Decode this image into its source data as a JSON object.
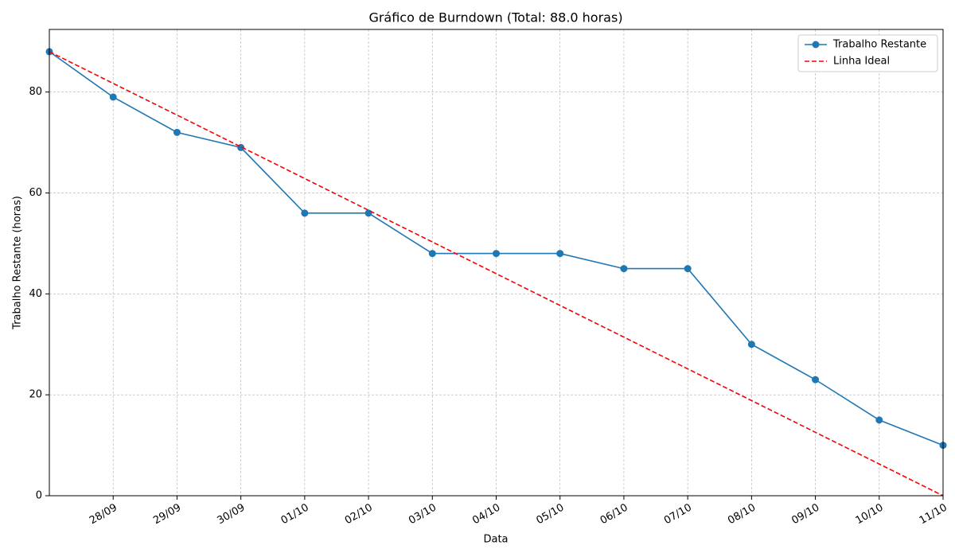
{
  "chart_data": {
    "type": "line",
    "title": "Gráfico de Burndown (Total: 88.0 horas)",
    "x_label": "Data",
    "y_label": "Trabalho Restante (horas)",
    "categories": [
      null,
      "28/09",
      "29/09",
      "30/09",
      "01/10",
      "02/10",
      "03/10",
      "04/10",
      "05/10",
      "06/10",
      "07/10",
      "08/10",
      "09/10",
      "10/10",
      "11/10"
    ],
    "series": [
      {
        "name": "Trabalho Restante",
        "color": "#1f77b4",
        "style": "solid",
        "markers": true,
        "values": [
          88,
          79,
          72,
          69,
          56,
          56,
          48,
          48,
          48,
          45,
          45,
          30,
          23,
          15,
          10
        ]
      },
      {
        "name": "Linha Ideal",
        "color": "#ff0000",
        "style": "dashed",
        "markers": false,
        "values": [
          88,
          81.71,
          75.43,
          69.14,
          62.86,
          56.57,
          50.29,
          44,
          37.71,
          31.43,
          25.14,
          18.86,
          12.57,
          6.29,
          0
        ]
      }
    ],
    "ylim": [
      0,
      92.4
    ],
    "yticks": [
      0,
      20,
      40,
      60,
      80
    ],
    "grid": true,
    "legend": "upper right"
  }
}
